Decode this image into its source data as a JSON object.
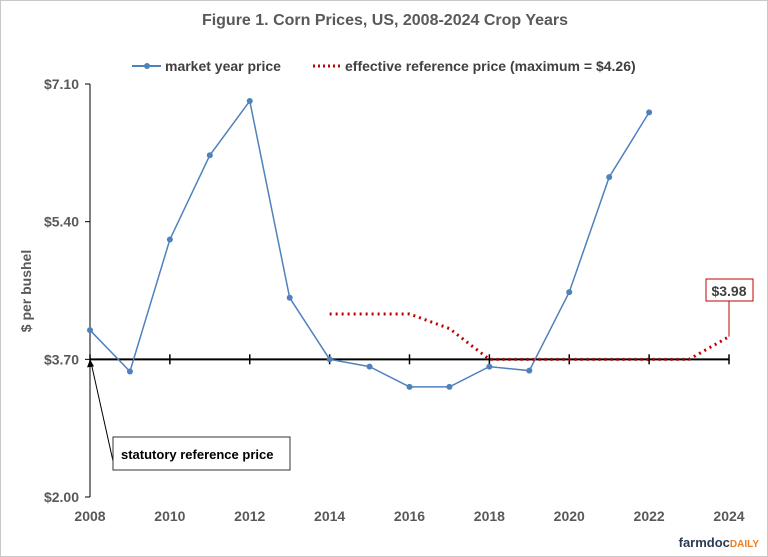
{
  "chart_data": {
    "type": "line",
    "title": "Figure  1. Corn Prices,  US, 2008-2024  Crop Years",
    "ylabel": "$ per bushel",
    "xlabel": "",
    "ylim": [
      2.0,
      7.1
    ],
    "xlim": [
      2008,
      2024
    ],
    "y_ticks": [
      "$7.10",
      "$5.40",
      "$3.70",
      "$2.00"
    ],
    "y_tick_values": [
      7.1,
      5.4,
      3.7,
      2.0
    ],
    "x_ticks": [
      "2008",
      "2010",
      "2012",
      "2014",
      "2016",
      "2018",
      "2020",
      "2022",
      "2024"
    ],
    "x_axis_crosses_at": 3.7,
    "legend_position": "top",
    "series": [
      {
        "name": "market year price",
        "color": "#4f81bd",
        "style": "solid-markers",
        "x": [
          2008,
          2009,
          2010,
          2011,
          2012,
          2013,
          2014,
          2015,
          2016,
          2017,
          2018,
          2019,
          2020,
          2021,
          2022
        ],
        "values": [
          4.06,
          3.55,
          5.18,
          6.22,
          6.89,
          4.46,
          3.7,
          3.61,
          3.36,
          3.36,
          3.61,
          3.56,
          4.53,
          5.95,
          6.75
        ]
      },
      {
        "name": "effective reference price (maximum = $4.26)",
        "color": "#c00000",
        "style": "dotted",
        "x": [
          2014,
          2015,
          2016,
          2017,
          2018,
          2019,
          2020,
          2021,
          2022,
          2023,
          2024
        ],
        "values": [
          4.26,
          4.26,
          4.26,
          4.08,
          3.7,
          3.7,
          3.7,
          3.7,
          3.7,
          3.7,
          3.98
        ]
      }
    ],
    "annotations": [
      {
        "text": "statutory reference price",
        "points_to": "2008, $3.70"
      },
      {
        "text": "$3.98",
        "points_to": "2024 effective reference price",
        "color": "#c00000"
      }
    ]
  },
  "watermark": {
    "part1": "farmdoc",
    "part2": "DAILY"
  }
}
